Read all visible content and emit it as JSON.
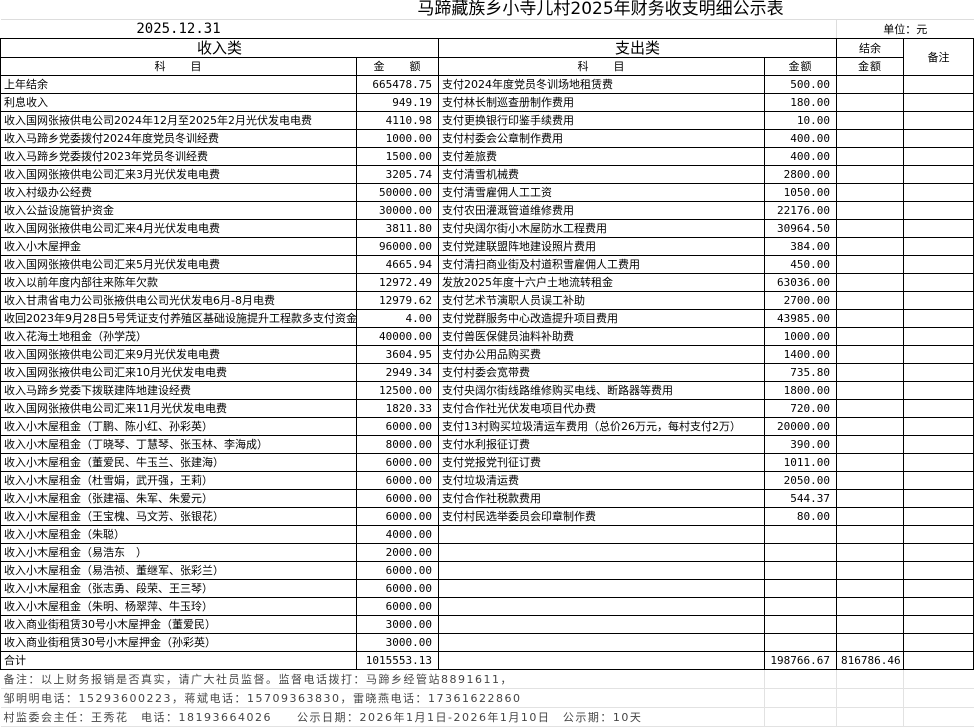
{
  "title": "马蹄藏族乡小寺儿村2025年财务收支明细公示表",
  "date": "2025.12.31",
  "unit": "单位：元",
  "income_header": "收入类",
  "expense_header": "支出类",
  "balance_header": "结余",
  "remarks_header": "备注",
  "income_item_col": "科　　目",
  "income_amount_col": "金　　额",
  "expense_item_col": "科　　目",
  "expense_amount_col": "金额",
  "balance_amount_col": "金额",
  "income": [
    {
      "item": "上年结余",
      "amount": "665478.75"
    },
    {
      "item": "利息收入",
      "amount": "949.19"
    },
    {
      "item": "收入国网张掖供电公司2024年12月至2025年2月光伏发电电费",
      "amount": "4110.98"
    },
    {
      "item": "收入马蹄乡党委拨付2024年度党员冬训经费",
      "amount": "1000.00"
    },
    {
      "item": "收入马蹄乡党委拨付2023年党员冬训经费",
      "amount": "1500.00"
    },
    {
      "item": "收入国网张掖供电公司汇来3月光伏发电电费",
      "amount": "3205.74"
    },
    {
      "item": "收入村级办公经费",
      "amount": "50000.00"
    },
    {
      "item": "收入公益设施管护资金",
      "amount": "30000.00"
    },
    {
      "item": "收入国网张掖供电公司汇来4月光伏发电电费",
      "amount": "3811.80"
    },
    {
      "item": "收入小木屋押金",
      "amount": "96000.00"
    },
    {
      "item": "收入国网张掖供电公司汇来5月光伏发电电费",
      "amount": "4665.94"
    },
    {
      "item": "收入以前年度内部往来陈年欠款",
      "amount": "12972.49"
    },
    {
      "item": "收入甘肃省电力公司张掖供电公司光伏发电6月-8月电费",
      "amount": "12979.62"
    },
    {
      "item": "收回2023年9月28日5号凭证支付养殖区基础设施提升工程款多支付资金",
      "amount": "4.00"
    },
    {
      "item": "收入花海土地租金（孙学茂）",
      "amount": "40000.00"
    },
    {
      "item": "收入国网张掖供电公司汇来9月光伏发电电费",
      "amount": "3604.95"
    },
    {
      "item": "收入国网张掖供电公司汇来10月光伏发电电费",
      "amount": "2949.34"
    },
    {
      "item": "收入马蹄乡党委下拨联建阵地建设经费",
      "amount": "12500.00"
    },
    {
      "item": "收入国网张掖供电公司汇来11月光伏发电电费",
      "amount": "1820.33"
    },
    {
      "item": "收入小木屋租金（丁鹏、陈小红、孙彩英）",
      "amount": "6000.00"
    },
    {
      "item": "收入小木屋租金（丁晓琴、丁慧琴、张玉林、李海成）",
      "amount": "8000.00"
    },
    {
      "item": "收入小木屋租金（董爱民、牛玉兰、张建海）",
      "amount": "6000.00"
    },
    {
      "item": "收入小木屋租金（杜雪娟，武开强，王莉）",
      "amount": "6000.00"
    },
    {
      "item": "收入小木屋租金（张建福、朱军、朱爱元）",
      "amount": "6000.00"
    },
    {
      "item": "收入小木屋租金（王宝槐、马文芳、张银花）",
      "amount": "6000.00"
    },
    {
      "item": "收入小木屋租金（朱聪）",
      "amount": "4000.00"
    },
    {
      "item": "收入小木屋租金（易浩东　）",
      "amount": "2000.00"
    },
    {
      "item": "收入小木屋租金（易浩祯、董继军、张彩兰）",
      "amount": "6000.00"
    },
    {
      "item": "收入小木屋租金（张志勇、段荣、王三琴）",
      "amount": "6000.00"
    },
    {
      "item": "收入小木屋租金（朱明、杨翠萍、牛玉玲）",
      "amount": "6000.00"
    },
    {
      "item": "收入商业街租赁30号小木屋押金（董爱民）",
      "amount": "3000.00"
    },
    {
      "item": "收入商业街租赁30号小木屋押金（孙彩英）",
      "amount": "3000.00"
    }
  ],
  "expense": [
    {
      "item": "支付2024年度党员冬训场地租赁费",
      "amount": "500.00"
    },
    {
      "item": "支付林长制巡查册制作费用",
      "amount": "180.00"
    },
    {
      "item": "支付更换银行印鉴手续费用",
      "amount": "10.00"
    },
    {
      "item": "支付村委会公章制作费用",
      "amount": "400.00"
    },
    {
      "item": "支付差旅费",
      "amount": "400.00"
    },
    {
      "item": "支付清雪机械费",
      "amount": "2800.00"
    },
    {
      "item": "支付清雪雇佣人工工资",
      "amount": "1050.00"
    },
    {
      "item": "支付农田灌溉管道维修费用",
      "amount": "22176.00"
    },
    {
      "item": "支付央阔尔街小木屋防水工程费用",
      "amount": "30964.50"
    },
    {
      "item": "支付党建联盟阵地建设照片费用",
      "amount": "384.00"
    },
    {
      "item": "支付清扫商业街及村道积雪雇佣人工费用",
      "amount": "450.00"
    },
    {
      "item": "发放2025年度十六户土地流转租金",
      "amount": "63036.00"
    },
    {
      "item": "支付艺术节演职人员误工补助",
      "amount": "2700.00"
    },
    {
      "item": "支付党群服务中心改造提升项目费用",
      "amount": "43985.00"
    },
    {
      "item": "支付兽医保健员油料补助费",
      "amount": "1000.00"
    },
    {
      "item": "支付办公用品购买费",
      "amount": "1400.00"
    },
    {
      "item": "支付村委会宽带费",
      "amount": "735.80"
    },
    {
      "item": "支付央阔尔街线路维修购买电线、断路器等费用",
      "amount": "1800.00"
    },
    {
      "item": "支付合作社光伏发电项目代办费",
      "amount": "720.00"
    },
    {
      "item": "支付13村购买垃圾清运车费用（总价26万元，每村支付2万）",
      "amount": "20000.00"
    },
    {
      "item": "支付水利报征订费",
      "amount": "390.00"
    },
    {
      "item": "支付党报党刊征订费",
      "amount": "1011.00"
    },
    {
      "item": "支付垃圾清运费",
      "amount": "2050.00"
    },
    {
      "item": "支付合作社税款费用",
      "amount": "544.37"
    },
    {
      "item": "支付村民选举委员会印章制作费",
      "amount": "80.00"
    }
  ],
  "total": {
    "label": "合计",
    "income": "1015553.13",
    "expense": "198766.67",
    "balance": "816786.46"
  },
  "footer": [
    "备注：以上财务报销是否真实，请广大社员监督。监督电话拨打：马蹄乡经管站8891611，",
    "邹明明电话：15293600223，蒋斌电话：15709363830，雷晓燕电话：17361622860",
    "村监委会主任：王秀花　电话：18193664026　　公示日期：2026年1月1日-2026年1月10日　公示期：10天"
  ]
}
